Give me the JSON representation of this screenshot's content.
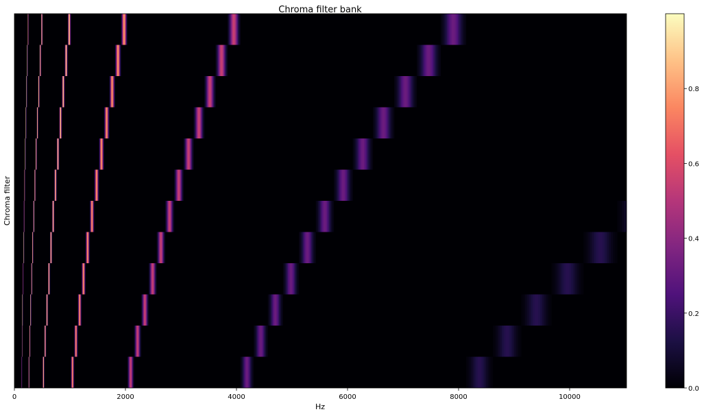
{
  "chart_data": {
    "type": "heatmap",
    "title": "Chroma filter bank",
    "xlabel": "Hz",
    "ylabel": "Chroma filter",
    "xlim": [
      0,
      11025
    ],
    "x_ticks": [
      0,
      2000,
      4000,
      6000,
      8000,
      10000
    ],
    "x_tick_labels": [
      "0",
      "2000",
      "4000",
      "6000",
      "8000",
      "10000"
    ],
    "n_filters": 12,
    "rows_top_to_bottom": [
      11,
      10,
      9,
      8,
      7,
      6,
      5,
      4,
      3,
      2,
      1,
      0
    ],
    "y_tick_labels": [],
    "filter_base_frequency_hz": 261.63,
    "octave_peak_values": [
      1.0,
      0.98,
      0.94,
      0.8,
      0.55,
      0.32,
      0.15
    ],
    "colorbar": {
      "colormap": "magma",
      "range": [
        0.0,
        1.0
      ],
      "ticks": [
        0.0,
        0.2,
        0.4,
        0.6,
        0.8
      ],
      "tick_labels": [
        "0.0",
        "0.2",
        "0.4",
        "0.6",
        "0.8"
      ]
    }
  }
}
